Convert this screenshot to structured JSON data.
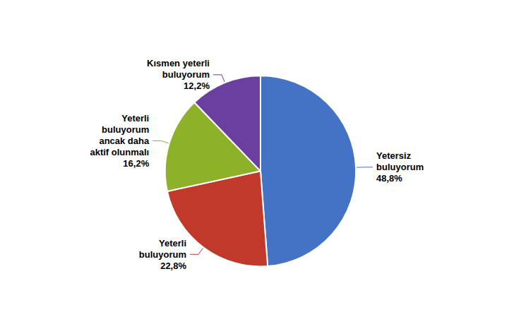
{
  "chart_data": {
    "type": "pie",
    "categories": [
      "Yetersiz\nbuluyorum",
      "Yeterli\nbuluyorum",
      "Yeterli\nbuluyorum\nancak daha\naktif olunmalı",
      "Kısmen yeterli\nbuluyorum"
    ],
    "values": [
      48.8,
      22.8,
      16.2,
      12.2
    ],
    "value_labels": [
      "48,8%",
      "22,8%",
      "16,2%",
      "12,2%"
    ],
    "data_labels": true,
    "colors": [
      "#4472C4",
      "#C0392B",
      "#8DB22A",
      "#6B3FA0"
    ]
  }
}
